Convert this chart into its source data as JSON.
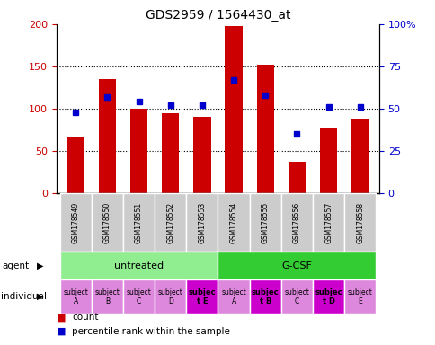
{
  "title": "GDS2959 / 1564430_at",
  "samples": [
    "GSM178549",
    "GSM178550",
    "GSM178551",
    "GSM178552",
    "GSM178553",
    "GSM178554",
    "GSM178555",
    "GSM178556",
    "GSM178557",
    "GSM178558"
  ],
  "counts": [
    67,
    135,
    100,
    95,
    90,
    198,
    152,
    37,
    77,
    88
  ],
  "percentile_ranks": [
    48,
    57,
    54,
    52,
    52,
    67,
    58,
    35,
    51,
    51
  ],
  "ylim_left": [
    0,
    200
  ],
  "ylim_right": [
    0,
    100
  ],
  "yticks_left": [
    0,
    50,
    100,
    150,
    200
  ],
  "yticks_right": [
    0,
    25,
    50,
    75,
    100
  ],
  "ytick_labels_left": [
    "0",
    "50",
    "100",
    "150",
    "200"
  ],
  "ytick_labels_right": [
    "0",
    "25",
    "50",
    "75",
    "100%"
  ],
  "bar_color": "#cc0000",
  "dot_color": "#0000cc",
  "agent_groups": [
    {
      "label": "untreated",
      "start": 0,
      "end": 4,
      "color": "#90ee90"
    },
    {
      "label": "G-CSF",
      "start": 5,
      "end": 9,
      "color": "#33cc33"
    }
  ],
  "individual_labels": [
    {
      "text": "subject\nA",
      "idx": 0,
      "bold": false
    },
    {
      "text": "subject\nB",
      "idx": 1,
      "bold": false
    },
    {
      "text": "subject\nC",
      "idx": 2,
      "bold": false
    },
    {
      "text": "subject\nD",
      "idx": 3,
      "bold": false
    },
    {
      "text": "subjec\nt E",
      "idx": 4,
      "bold": true
    },
    {
      "text": "subject\nA",
      "idx": 5,
      "bold": false
    },
    {
      "text": "subjec\nt B",
      "idx": 6,
      "bold": true
    },
    {
      "text": "subject\nC",
      "idx": 7,
      "bold": false
    },
    {
      "text": "subjec\nt D",
      "idx": 8,
      "bold": true
    },
    {
      "text": "subject\nE",
      "idx": 9,
      "bold": false
    }
  ],
  "individual_colors": [
    "#dd88dd",
    "#dd88dd",
    "#dd88dd",
    "#dd88dd",
    "#cc00cc",
    "#dd88dd",
    "#cc00cc",
    "#dd88dd",
    "#cc00cc",
    "#dd88dd"
  ],
  "xticklabel_bg": "#cccccc",
  "legend_count_color": "#cc0000",
  "legend_dot_color": "#0000cc",
  "legend_count_label": "count",
  "legend_dot_label": "percentile rank within the sample",
  "agent_label": "agent",
  "individual_label": "individual",
  "figsize": [
    4.85,
    3.84
  ],
  "dpi": 100
}
